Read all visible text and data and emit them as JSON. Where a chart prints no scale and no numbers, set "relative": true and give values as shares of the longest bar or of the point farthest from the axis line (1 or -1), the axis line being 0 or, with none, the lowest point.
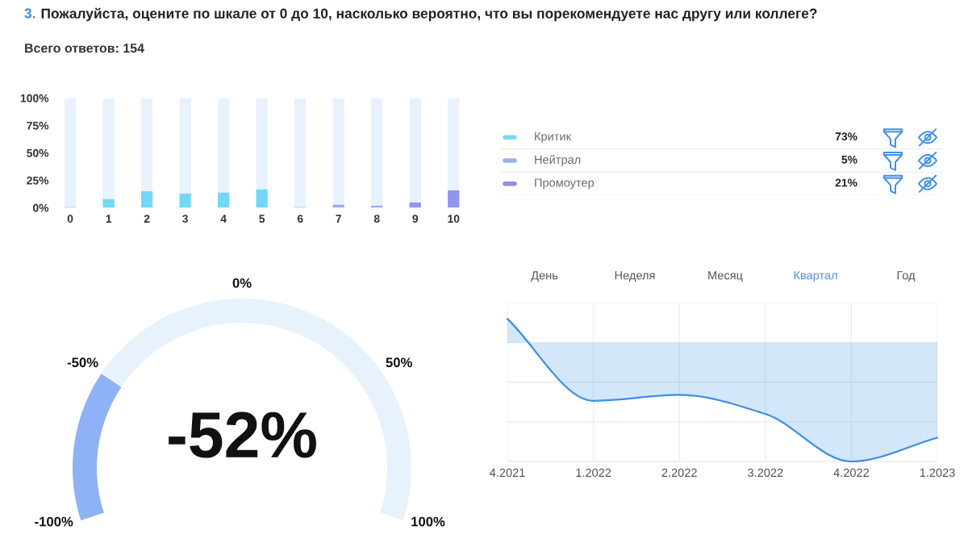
{
  "chart_data": [
    {
      "type": "bar",
      "title": "3. Пожалуйста, оцените по шкале от 0 до 10, насколько вероятно, что вы порекомендуете нас другу или коллеге?",
      "subtitle": "Всего ответов: 154",
      "categories": [
        "0",
        "1",
        "2",
        "3",
        "4",
        "5",
        "6",
        "7",
        "8",
        "9",
        "10"
      ],
      "stacked": true,
      "series": [
        {
          "colors": [
            "#74d7f7",
            "#74d7f7",
            "#74d7f7",
            "#74d7f7",
            "#74d7f7",
            "#74d7f7",
            "#74d7f7",
            "#9aabee",
            "#9aabee",
            "#9095f2",
            "#9095f2"
          ],
          "values": [
            1,
            8,
            15,
            13,
            14,
            17,
            1,
            3,
            2,
            5,
            16
          ]
        },
        {
          "color": "#e8f2fd",
          "values": [
            99,
            92,
            85,
            87,
            86,
            83,
            99,
            97,
            98,
            95,
            84
          ]
        }
      ],
      "ylim": [
        0,
        100
      ],
      "yticks": [
        {
          "value": 0,
          "label": "0%"
        },
        {
          "value": 25,
          "label": "25%"
        },
        {
          "value": 50,
          "label": "50%"
        },
        {
          "value": 75,
          "label": "75%"
        },
        {
          "value": 100,
          "label": "100%"
        }
      ]
    },
    {
      "type": "other",
      "categories": [
        "Критик",
        "Нейтрал",
        "Промоутер"
      ],
      "value_labels": [
        "73%",
        "5%",
        "21%"
      ],
      "colors": [
        "#7dd8f5",
        "#9cb0f0",
        "#8e8ff0"
      ]
    },
    {
      "type": "donut",
      "categories": [
        null,
        null
      ],
      "values": [
        24,
        76
      ],
      "colors": [
        "#8fb1f5",
        "#e8f2fd"
      ],
      "annotations": [
        "-52%",
        "-100%",
        "-50%",
        "0%",
        "50%",
        "100%"
      ]
    },
    {
      "type": "other",
      "categories": [
        "День",
        "Неделя",
        "Месяц",
        "Квартал",
        "Год"
      ],
      "colors": [
        "#555555",
        "#555555",
        "#555555",
        "#5b8fe0",
        "#555555"
      ]
    },
    {
      "type": "area",
      "relative": true,
      "categories": [
        "4.2021",
        "1.2022",
        "2.2022",
        "3.2022",
        "4.2022",
        "1.2023"
      ],
      "series": [
        {
          "color": "#3a8ee6",
          "values": [
            0.2,
            -0.49,
            -0.44,
            -0.6,
            -1,
            -0.8
          ]
        }
      ],
      "grid": true
    }
  ]
}
